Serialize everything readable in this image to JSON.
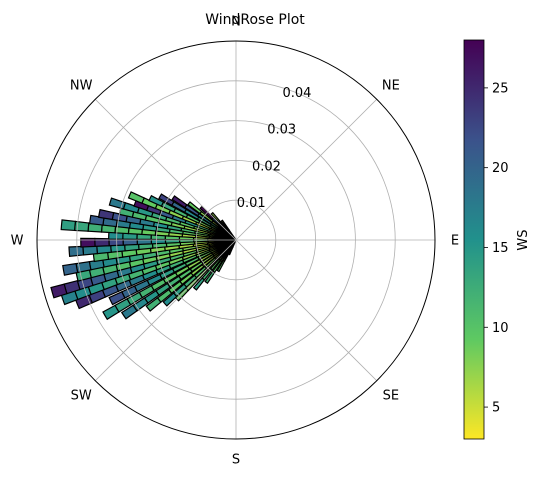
{
  "chart_data": {
    "type": "windrose",
    "title": "WindRose Plot",
    "direction_labels": [
      "N",
      "NE",
      "E",
      "SE",
      "S",
      "SW",
      "W",
      "NW"
    ],
    "radial_ticks": [
      0.01,
      0.02,
      0.03,
      0.04
    ],
    "radial_tick_labels": [
      "0.01",
      "0.02",
      "0.03",
      "0.04"
    ],
    "rmax": 0.05,
    "grid": true,
    "colorbar": {
      "label": "WS",
      "colormap": "viridis_r",
      "range": [
        3,
        28
      ],
      "ticks": [
        5,
        10,
        15,
        20,
        25
      ],
      "tick_labels": [
        "5",
        "10",
        "15",
        "20",
        "25"
      ]
    },
    "bar_edge_color": "#000000",
    "bars": [
      {
        "direction": 205,
        "ws": 8,
        "frequency": 0.004
      },
      {
        "direction": 210,
        "ws": 10,
        "frequency": 0.009
      },
      {
        "direction": 215,
        "ws": 12,
        "frequency": 0.013
      },
      {
        "direction": 220,
        "ws": 14,
        "frequency": 0.016
      },
      {
        "direction": 225,
        "ws": 9,
        "frequency": 0.021
      },
      {
        "direction": 228,
        "ws": 16,
        "frequency": 0.024
      },
      {
        "direction": 232,
        "ws": 12,
        "frequency": 0.028
      },
      {
        "direction": 236,
        "ws": 18,
        "frequency": 0.034
      },
      {
        "direction": 240,
        "ws": 15,
        "frequency": 0.038
      },
      {
        "direction": 244,
        "ws": 22,
        "frequency": 0.035
      },
      {
        "direction": 248,
        "ws": 25,
        "frequency": 0.043
      },
      {
        "direction": 251,
        "ws": 17,
        "frequency": 0.046
      },
      {
        "direction": 254,
        "ws": 26,
        "frequency": 0.048
      },
      {
        "direction": 257,
        "ws": 13,
        "frequency": 0.041
      },
      {
        "direction": 260,
        "ws": 20,
        "frequency": 0.044
      },
      {
        "direction": 263,
        "ws": 11,
        "frequency": 0.036
      },
      {
        "direction": 266,
        "ws": 19,
        "frequency": 0.042
      },
      {
        "direction": 269,
        "ws": 27,
        "frequency": 0.039
      },
      {
        "direction": 272,
        "ws": 16,
        "frequency": 0.032
      },
      {
        "direction": 275,
        "ws": 14,
        "frequency": 0.044
      },
      {
        "direction": 278,
        "ws": 21,
        "frequency": 0.037
      },
      {
        "direction": 281,
        "ws": 24,
        "frequency": 0.035
      },
      {
        "direction": 284,
        "ws": 12,
        "frequency": 0.03
      },
      {
        "direction": 287,
        "ws": 18,
        "frequency": 0.033
      },
      {
        "direction": 290,
        "ws": 27,
        "frequency": 0.027
      },
      {
        "direction": 293,
        "ws": 10,
        "frequency": 0.029
      },
      {
        "direction": 296,
        "ws": 15,
        "frequency": 0.024
      },
      {
        "direction": 300,
        "ws": 23,
        "frequency": 0.022
      },
      {
        "direction": 304,
        "ws": 26,
        "frequency": 0.019
      },
      {
        "direction": 308,
        "ws": 9,
        "frequency": 0.015
      },
      {
        "direction": 313,
        "ws": 28,
        "frequency": 0.012
      },
      {
        "direction": 318,
        "ws": 7,
        "frequency": 0.009
      },
      {
        "direction": 324,
        "ws": 6,
        "frequency": 0.006
      }
    ]
  }
}
